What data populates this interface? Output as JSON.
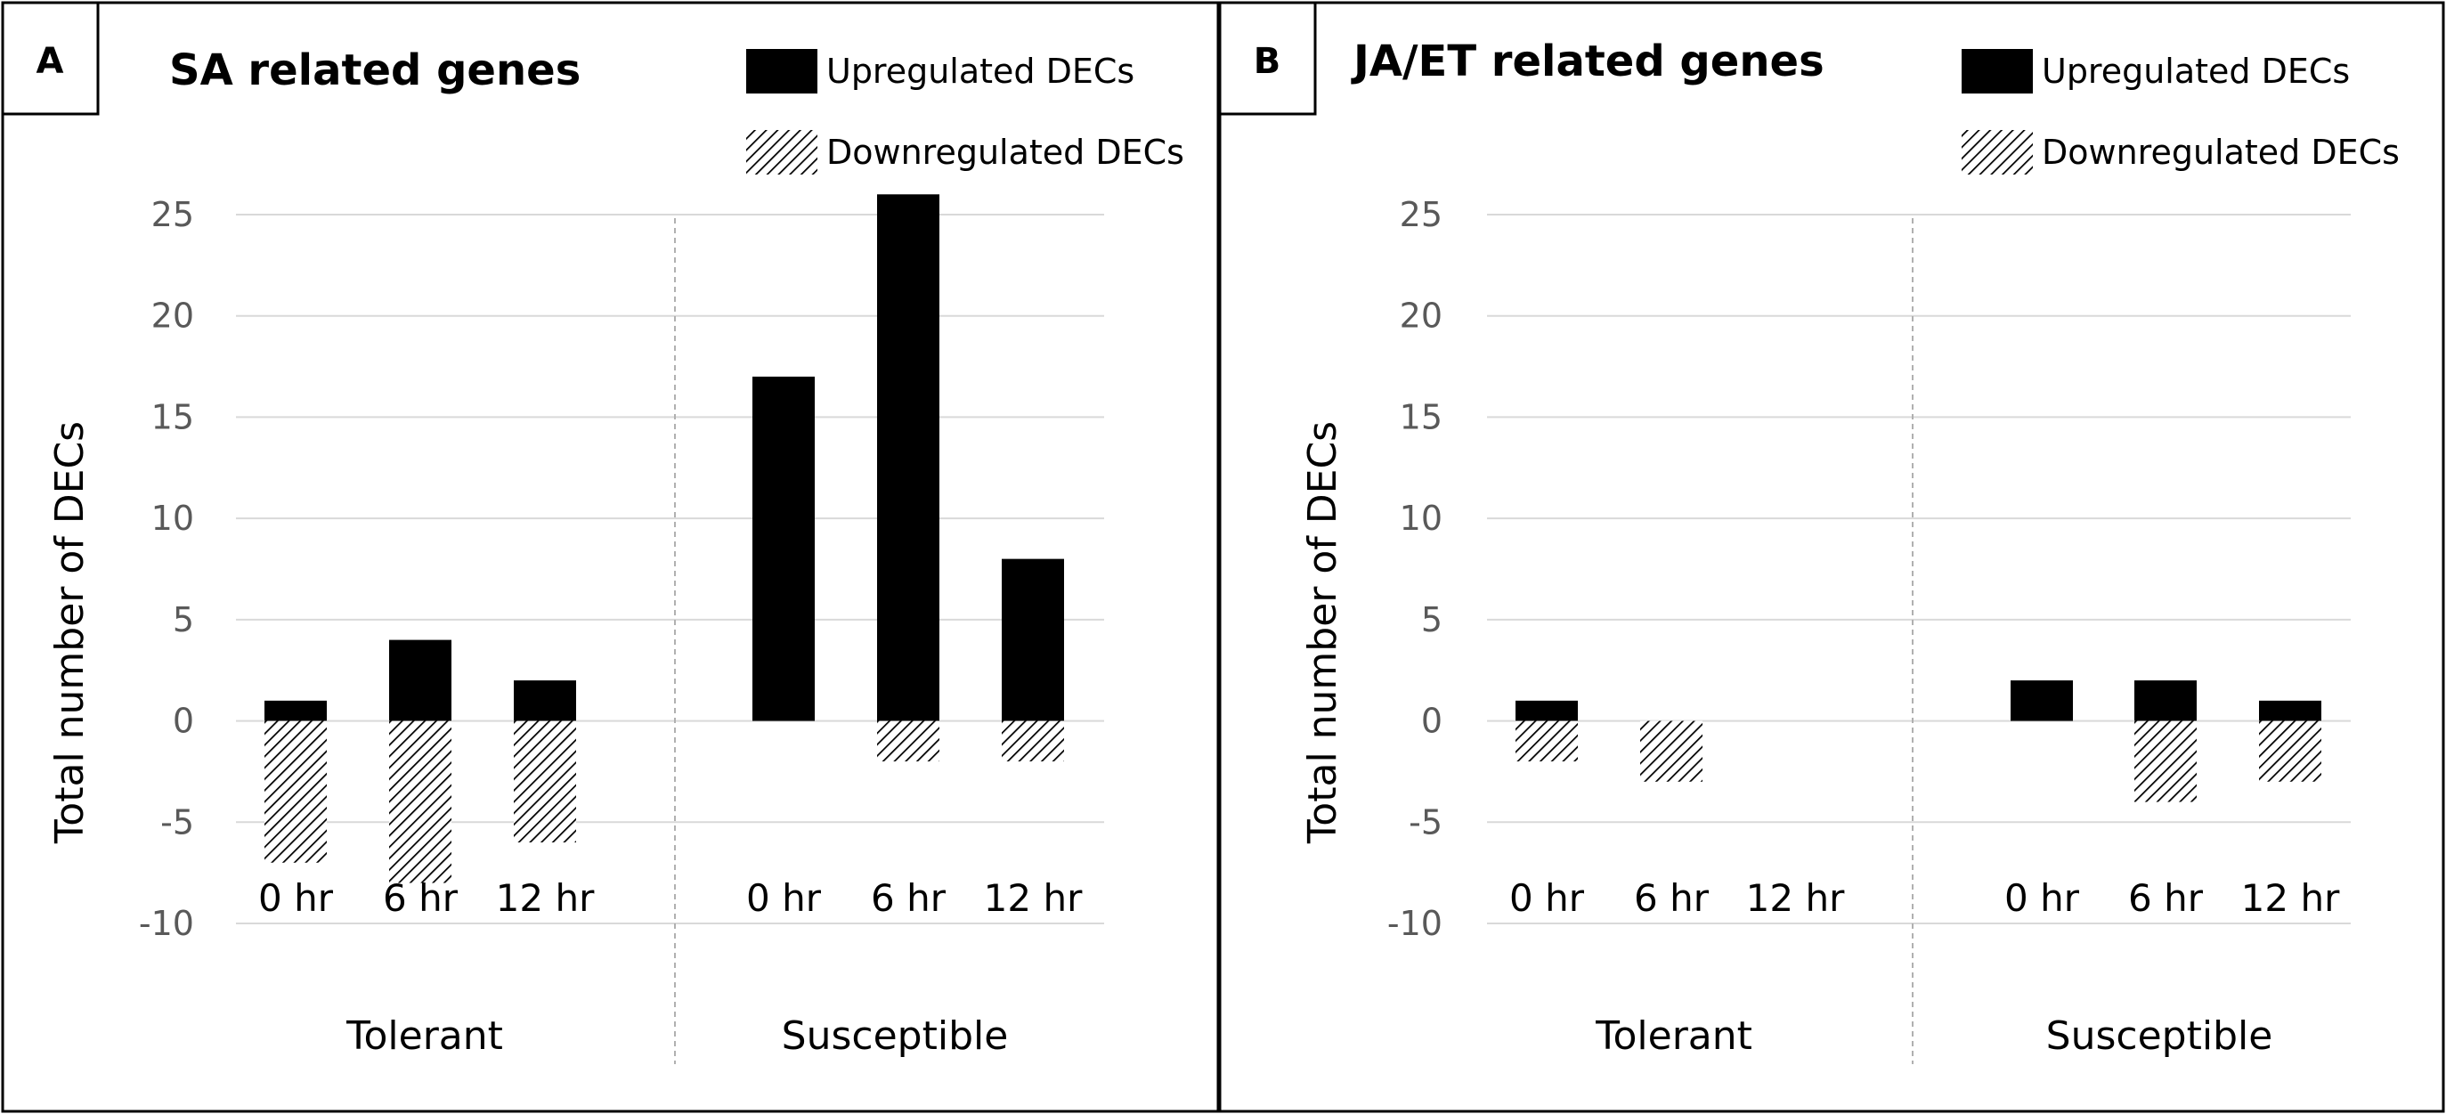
{
  "chart_data": [
    {
      "type": "bar",
      "panel": "A",
      "title": "SA related genes",
      "ylabel": "Total number of DECs",
      "ylim": [
        -10,
        25
      ],
      "yticks": [
        25,
        20,
        15,
        10,
        5,
        0,
        -5,
        -10
      ],
      "groups": [
        "Tolerant",
        "Susceptible"
      ],
      "categories": [
        "0 hr",
        "6 hr",
        "12 hr",
        "0 hr",
        "6 hr",
        "12 hr"
      ],
      "series": [
        {
          "name": "Upregulated DECs",
          "pattern": "solid",
          "values": [
            1,
            4,
            2,
            17,
            26,
            8
          ]
        },
        {
          "name": "Downregulated DECs",
          "pattern": "hatched",
          "values": [
            -7,
            -8,
            -6,
            0,
            -2,
            -2
          ]
        }
      ]
    },
    {
      "type": "bar",
      "panel": "B",
      "title": "JA/ET related genes",
      "ylabel": "Total number of DECs",
      "ylim": [
        -10,
        25
      ],
      "yticks": [
        25,
        20,
        15,
        10,
        5,
        0,
        -5,
        -10
      ],
      "groups": [
        "Tolerant",
        "Susceptible"
      ],
      "categories": [
        "0 hr",
        "6 hr",
        "12 hr",
        "0 hr",
        "6 hr",
        "12 hr"
      ],
      "series": [
        {
          "name": "Upregulated DECs",
          "pattern": "solid",
          "values": [
            1,
            0,
            0,
            2,
            2,
            1
          ]
        },
        {
          "name": "Downregulated DECs",
          "pattern": "hatched",
          "values": [
            -2,
            -3,
            0,
            0,
            -4,
            -3
          ]
        }
      ]
    }
  ],
  "colors": {
    "bar": "#000000",
    "grid": "#d9d9d9",
    "tick_text": "#595959"
  }
}
